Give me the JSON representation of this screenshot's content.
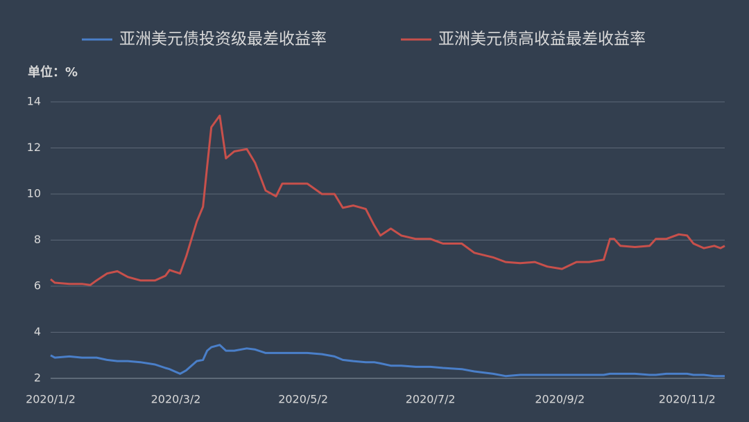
{
  "chart_data": {
    "type": "line",
    "unit_label": "单位：%",
    "x": [
      "2020/1/2",
      "2020/1/4",
      "2020/1/11",
      "2020/1/17",
      "2020/1/21",
      "2020/1/24",
      "2020/1/29",
      "2020/2/3",
      "2020/2/8",
      "2020/2/14",
      "2020/2/21",
      "2020/2/26",
      "2020/2/28",
      "2020/3/4",
      "2020/3/7",
      "2020/3/12",
      "2020/3/15",
      "2020/3/17",
      "2020/3/19",
      "2020/3/23",
      "2020/3/26",
      "2020/3/30",
      "2020/4/5",
      "2020/4/9",
      "2020/4/14",
      "2020/4/19",
      "2020/4/22",
      "2020/4/29",
      "2020/5/4",
      "2020/5/11",
      "2020/5/17",
      "2020/5/21",
      "2020/5/26",
      "2020/6/1",
      "2020/6/5",
      "2020/6/8",
      "2020/6/13",
      "2020/6/18",
      "2020/6/25",
      "2020/7/2",
      "2020/7/8",
      "2020/7/17",
      "2020/7/23",
      "2020/8/1",
      "2020/8/7",
      "2020/8/14",
      "2020/8/21",
      "2020/8/27",
      "2020/9/3",
      "2020/9/10",
      "2020/9/16",
      "2020/9/23",
      "2020/9/26",
      "2020/9/28",
      "2020/10/1",
      "2020/10/8",
      "2020/10/15",
      "2020/10/18",
      "2020/10/23",
      "2020/10/29",
      "2020/11/2",
      "2020/11/5",
      "2020/11/10",
      "2020/11/15",
      "2020/11/18",
      "2020/11/20"
    ],
    "series": [
      {
        "name": "亚洲美元债投资级最差收益率",
        "color": "#4a7fc9",
        "values": [
          3.0,
          2.9,
          2.95,
          2.9,
          2.9,
          2.9,
          2.8,
          2.75,
          2.75,
          2.7,
          2.6,
          2.45,
          2.4,
          2.2,
          2.35,
          2.75,
          2.8,
          3.2,
          3.35,
          3.45,
          3.2,
          3.2,
          3.3,
          3.25,
          3.1,
          3.1,
          3.1,
          3.1,
          3.1,
          3.05,
          2.95,
          2.8,
          2.75,
          2.7,
          2.7,
          2.65,
          2.55,
          2.55,
          2.5,
          2.5,
          2.45,
          2.4,
          2.3,
          2.2,
          2.1,
          2.15,
          2.15,
          2.15,
          2.15,
          2.15,
          2.15,
          2.15,
          2.2,
          2.2,
          2.2,
          2.2,
          2.15,
          2.15,
          2.2,
          2.2,
          2.2,
          2.15,
          2.15,
          2.1,
          2.1,
          2.1
        ]
      },
      {
        "name": "亚洲美元债高收益最差收益率",
        "color": "#c8504b",
        "values": [
          6.3,
          6.15,
          6.1,
          6.1,
          6.05,
          6.25,
          6.55,
          6.65,
          6.4,
          6.25,
          6.25,
          6.45,
          6.7,
          6.55,
          7.3,
          8.8,
          9.45,
          11.2,
          12.9,
          13.4,
          11.55,
          11.85,
          11.95,
          11.35,
          10.15,
          9.9,
          10.45,
          10.45,
          10.45,
          10.0,
          10.0,
          9.4,
          9.5,
          9.35,
          8.65,
          8.2,
          8.5,
          8.2,
          8.05,
          8.05,
          7.85,
          7.85,
          7.45,
          7.25,
          7.05,
          7.0,
          7.05,
          6.85,
          6.75,
          7.05,
          7.05,
          7.15,
          8.05,
          8.05,
          7.75,
          7.7,
          7.75,
          8.05,
          8.05,
          8.25,
          8.2,
          7.85,
          7.65,
          7.75,
          7.65,
          7.75
        ]
      }
    ],
    "xlim": [
      "2020/1/2",
      "2020/11/20"
    ],
    "xticks": [
      "2020/1/2",
      "2020/3/2",
      "2020/5/2",
      "2020/7/2",
      "2020/9/2",
      "2020/11/2"
    ],
    "ylim": [
      2,
      14
    ],
    "yticks": [
      2,
      4,
      6,
      8,
      10,
      12,
      14
    ],
    "grid": true
  }
}
